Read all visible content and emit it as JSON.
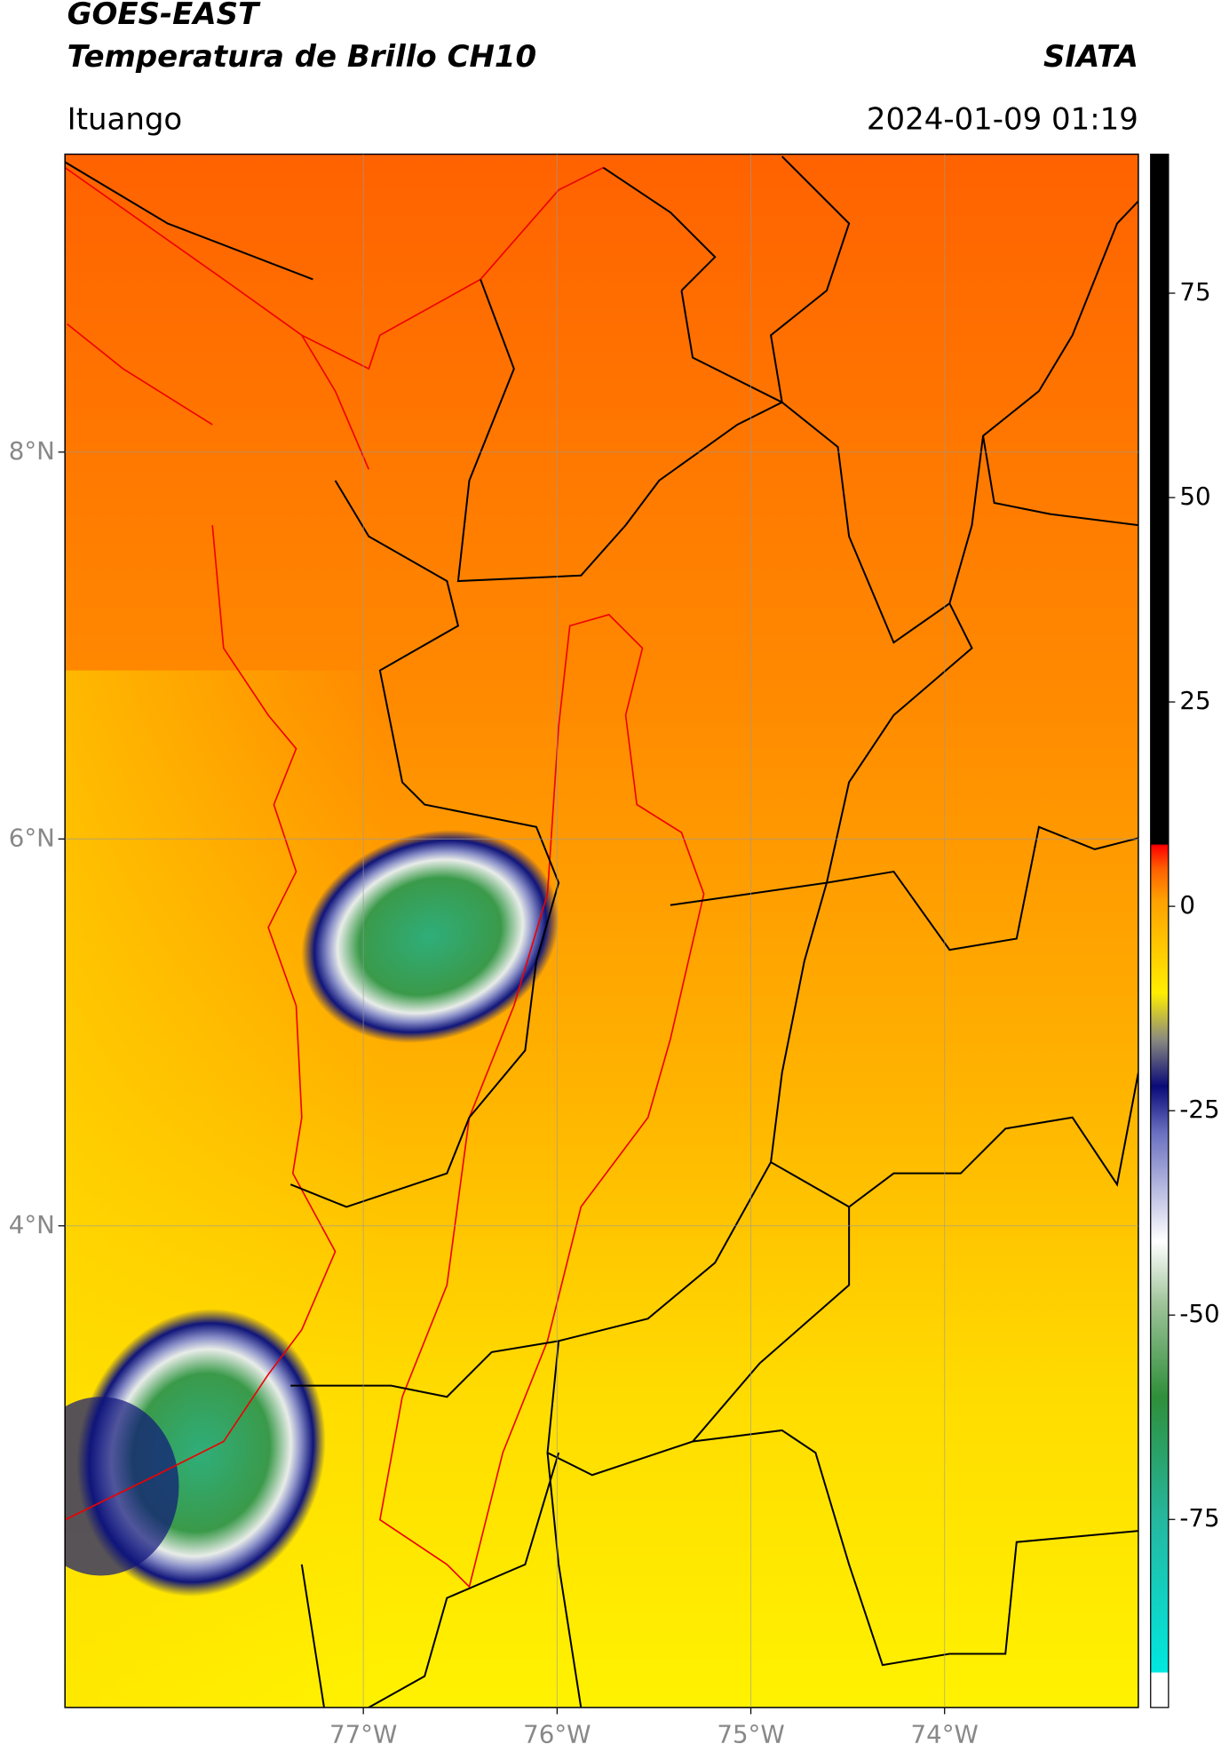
{
  "header": {
    "source": "GOES-EAST",
    "product": "Temperatura de Brillo CH10",
    "agency": "SIATA",
    "location": "Ituango",
    "datetime": "2024-01-09 01:19"
  },
  "map": {
    "lon_lim": [
      -78.54,
      -73.0
    ],
    "lat_lim": [
      1.51,
      9.54
    ],
    "lat_ticks": [
      {
        "value": 8,
        "label": "8°N"
      },
      {
        "value": 6,
        "label": "6°N"
      },
      {
        "value": 4,
        "label": "4°N"
      }
    ],
    "lon_ticks": [
      {
        "value": -77,
        "label": "77°W"
      },
      {
        "value": -76,
        "label": "76°W"
      },
      {
        "value": -75,
        "label": "75°W"
      },
      {
        "value": -74,
        "label": "74°W"
      }
    ]
  },
  "colorbar": {
    "lim": [
      -98,
      92
    ],
    "ticks": [
      75,
      50,
      25,
      0,
      -25,
      -50,
      -75
    ]
  }
}
